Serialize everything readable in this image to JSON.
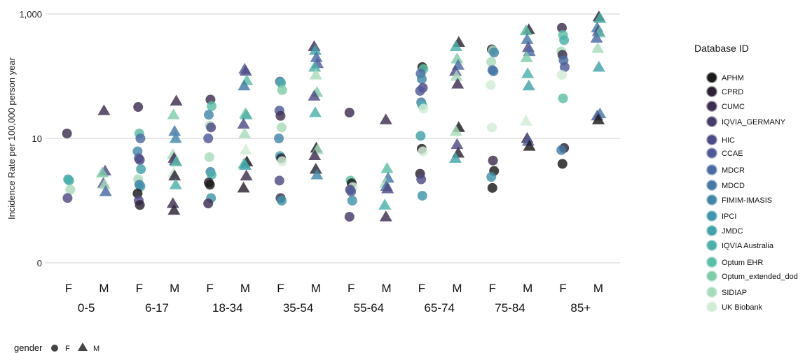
{
  "chart_data": {
    "type": "scatter",
    "xlabel": "",
    "ylabel": "Incidence Rate per 100,000 person year",
    "ylim": [
      0,
      1000
    ],
    "yscale": "log (0 shown at bottom)",
    "yticks": [
      {
        "value": 1000,
        "label": "1,000"
      },
      {
        "value": 10,
        "label": "10"
      },
      {
        "value": 0,
        "label": "0"
      }
    ],
    "grid": "horizontal",
    "age_groups": [
      "0-5",
      "6-17",
      "18-34",
      "35-54",
      "55-64",
      "65-74",
      "75-84",
      "85+"
    ],
    "genders": [
      "F",
      "M"
    ],
    "legend_title": "Database ID",
    "legend_position": "right",
    "databases": [
      {
        "name": "APHM",
        "color": "#1a1a1a"
      },
      {
        "name": "CPRD",
        "color": "#2b2232"
      },
      {
        "name": "CUMC",
        "color": "#3d2e4f"
      },
      {
        "name": "IQVIA_GERMANY",
        "color": "#473b6a"
      },
      {
        "name": "HIC",
        "color": "#4e4a84"
      },
      {
        "name": "CCAE",
        "color": "#4f5a97"
      },
      {
        "name": "MDCR",
        "color": "#4a6aa2"
      },
      {
        "name": "MDCD",
        "color": "#4679a6"
      },
      {
        "name": "FIMIM-IMASIS",
        "color": "#4387a8"
      },
      {
        "name": "IPCI",
        "color": "#4194aa"
      },
      {
        "name": "JMDC",
        "color": "#43a2aa"
      },
      {
        "name": "IQVIA Australia",
        "color": "#4cb0a8"
      },
      {
        "name": "Optum EHR",
        "color": "#5dbea6"
      },
      {
        "name": "Optum_extended_dod",
        "color": "#80ccaa"
      },
      {
        "name": "SIDIAP",
        "color": "#a8dbbb"
      },
      {
        "name": "UK Biobank",
        "color": "#d2ecd7"
      }
    ],
    "gender_legend": {
      "title": "gender",
      "items": [
        {
          "label": "F",
          "shape": "circle"
        },
        {
          "label": "M",
          "shape": "triangle"
        }
      ]
    },
    "points": [
      {
        "x": "0-5",
        "g": "F",
        "y": 12,
        "db": "CUMC"
      },
      {
        "x": "0-5",
        "g": "F",
        "y": 2.2,
        "db": "JMDC"
      },
      {
        "x": "0-5",
        "g": "F",
        "y": 2.1,
        "db": "IQVIA Australia"
      },
      {
        "x": "0-5",
        "g": "F",
        "y": 1.5,
        "db": "SIDIAP"
      },
      {
        "x": "0-5",
        "g": "F",
        "y": 1.1,
        "db": "HIC"
      },
      {
        "x": "0-5",
        "g": "M",
        "y": 28,
        "db": "CUMC"
      },
      {
        "x": "0-5",
        "g": "M",
        "y": 3.0,
        "db": "HIC"
      },
      {
        "x": "0-5",
        "g": "M",
        "y": 2.8,
        "db": "Optum_extended_dod"
      },
      {
        "x": "0-5",
        "g": "M",
        "y": 1.9,
        "db": "CCAE"
      },
      {
        "x": "0-5",
        "g": "M",
        "y": 1.8,
        "db": "SIDIAP"
      },
      {
        "x": "0-5",
        "g": "M",
        "y": 1.4,
        "db": "MDCR"
      },
      {
        "x": "6-17",
        "g": "F",
        "y": 32,
        "db": "CUMC"
      },
      {
        "x": "6-17",
        "g": "F",
        "y": 12,
        "db": "Optum EHR"
      },
      {
        "x": "6-17",
        "g": "F",
        "y": 10,
        "db": "MDCR"
      },
      {
        "x": "6-17",
        "g": "F",
        "y": 6.2,
        "db": "FIMIM-IMASIS"
      },
      {
        "x": "6-17",
        "g": "F",
        "y": 4.8,
        "db": "CCAE"
      },
      {
        "x": "6-17",
        "g": "F",
        "y": 4.5,
        "db": "HIC"
      },
      {
        "x": "6-17",
        "g": "F",
        "y": 3.2,
        "db": "JMDC"
      },
      {
        "x": "6-17",
        "g": "F",
        "y": 2.2,
        "db": "SIDIAP"
      },
      {
        "x": "6-17",
        "g": "F",
        "y": 1.8,
        "db": "MDCD"
      },
      {
        "x": "6-17",
        "g": "F",
        "y": 1.7,
        "db": "IPCI"
      },
      {
        "x": "6-17",
        "g": "F",
        "y": 1.3,
        "db": "APHM"
      },
      {
        "x": "6-17",
        "g": "F",
        "y": 1.0,
        "db": "HIC"
      },
      {
        "x": "6-17",
        "g": "F",
        "y": 0.85,
        "db": "CPRD"
      },
      {
        "x": "6-17",
        "g": "M",
        "y": 40,
        "db": "CUMC"
      },
      {
        "x": "6-17",
        "g": "M",
        "y": 24,
        "db": "Optum_extended_dod"
      },
      {
        "x": "6-17",
        "g": "M",
        "y": 13,
        "db": "MDCD"
      },
      {
        "x": "6-17",
        "g": "M",
        "y": 10,
        "db": "FIMIM-IMASIS"
      },
      {
        "x": "6-17",
        "g": "M",
        "y": 5.5,
        "db": "SIDIAP"
      },
      {
        "x": "6-17",
        "g": "M",
        "y": 4.8,
        "db": "CUMC"
      },
      {
        "x": "6-17",
        "g": "M",
        "y": 4.4,
        "db": "HIC"
      },
      {
        "x": "6-17",
        "g": "M",
        "y": 4.2,
        "db": "Optum EHR"
      },
      {
        "x": "6-17",
        "g": "M",
        "y": 2.8,
        "db": "UK Biobank"
      },
      {
        "x": "6-17",
        "g": "M",
        "y": 2.5,
        "db": "CPRD"
      },
      {
        "x": "6-17",
        "g": "M",
        "y": 1.8,
        "db": "IQVIA Australia"
      },
      {
        "x": "6-17",
        "g": "M",
        "y": 0.9,
        "db": "CUMC"
      },
      {
        "x": "6-17",
        "g": "M",
        "y": 0.7,
        "db": "CPRD"
      },
      {
        "x": "18-34",
        "g": "F",
        "y": 42,
        "db": "CUMC"
      },
      {
        "x": "18-34",
        "g": "F",
        "y": 33,
        "db": "Optum EHR"
      },
      {
        "x": "18-34",
        "g": "F",
        "y": 24,
        "db": "FIMIM-IMASIS"
      },
      {
        "x": "18-34",
        "g": "F",
        "y": 16,
        "db": "SIDIAP"
      },
      {
        "x": "18-34",
        "g": "F",
        "y": 15,
        "db": "HIC"
      },
      {
        "x": "18-34",
        "g": "F",
        "y": 10,
        "db": "CCAE"
      },
      {
        "x": "18-34",
        "g": "F",
        "y": 5.0,
        "db": "SIDIAP"
      },
      {
        "x": "18-34",
        "g": "F",
        "y": 2.9,
        "db": "FIMIM-IMASIS"
      },
      {
        "x": "18-34",
        "g": "F",
        "y": 2.6,
        "db": "IQVIA Australia"
      },
      {
        "x": "18-34",
        "g": "F",
        "y": 1.95,
        "db": "CPRD"
      },
      {
        "x": "18-34",
        "g": "F",
        "y": 1.8,
        "db": "APHM"
      },
      {
        "x": "18-34",
        "g": "F",
        "y": 1.1,
        "db": "IPCI"
      },
      {
        "x": "18-34",
        "g": "F",
        "y": 0.9,
        "db": "CUMC"
      },
      {
        "x": "18-34",
        "g": "M",
        "y": 130,
        "db": "CCAE"
      },
      {
        "x": "18-34",
        "g": "M",
        "y": 120,
        "db": "HIC"
      },
      {
        "x": "18-34",
        "g": "M",
        "y": 85,
        "db": "Optum EHR"
      },
      {
        "x": "18-34",
        "g": "M",
        "y": 70,
        "db": "MDCD"
      },
      {
        "x": "18-34",
        "g": "M",
        "y": 25,
        "db": "Optum_extended_dod"
      },
      {
        "x": "18-34",
        "g": "M",
        "y": 24,
        "db": "IQVIA Australia"
      },
      {
        "x": "18-34",
        "g": "M",
        "y": 17,
        "db": "HIC"
      },
      {
        "x": "18-34",
        "g": "M",
        "y": 12,
        "db": "SIDIAP"
      },
      {
        "x": "18-34",
        "g": "M",
        "y": 6.5,
        "db": "UK Biobank"
      },
      {
        "x": "18-34",
        "g": "M",
        "y": 4.2,
        "db": "APHM"
      },
      {
        "x": "18-34",
        "g": "M",
        "y": 3.9,
        "db": "IQVIA Australia"
      },
      {
        "x": "18-34",
        "g": "M",
        "y": 3.7,
        "db": "JMDC"
      },
      {
        "x": "18-34",
        "g": "M",
        "y": 2.5,
        "db": "CUMC"
      },
      {
        "x": "18-34",
        "g": "M",
        "y": 1.6,
        "db": "CPRD"
      },
      {
        "x": "35-54",
        "g": "F",
        "y": 82,
        "db": "MDCR"
      },
      {
        "x": "35-54",
        "g": "F",
        "y": 78,
        "db": "IQVIA Australia"
      },
      {
        "x": "35-54",
        "g": "F",
        "y": 60,
        "db": "Optum_extended_dod"
      },
      {
        "x": "35-54",
        "g": "F",
        "y": 28,
        "db": "CCAE"
      },
      {
        "x": "35-54",
        "g": "F",
        "y": 23,
        "db": "CUMC"
      },
      {
        "x": "35-54",
        "g": "F",
        "y": 15,
        "db": "SIDIAP"
      },
      {
        "x": "35-54",
        "g": "F",
        "y": 10,
        "db": "FIMIM-IMASIS"
      },
      {
        "x": "35-54",
        "g": "F",
        "y": 5.2,
        "db": "JMDC"
      },
      {
        "x": "35-54",
        "g": "F",
        "y": 4.8,
        "db": "CPRD"
      },
      {
        "x": "35-54",
        "g": "F",
        "y": 4.3,
        "db": "UK Biobank"
      },
      {
        "x": "35-54",
        "g": "F",
        "y": 2.1,
        "db": "HIC"
      },
      {
        "x": "35-54",
        "g": "F",
        "y": 1.1,
        "db": "CUMC"
      },
      {
        "x": "35-54",
        "g": "F",
        "y": 1.0,
        "db": "IPCI"
      },
      {
        "x": "35-54",
        "g": "M",
        "y": 300,
        "db": "CUMC"
      },
      {
        "x": "35-54",
        "g": "M",
        "y": 260,
        "db": "JMDC"
      },
      {
        "x": "35-54",
        "g": "M",
        "y": 200,
        "db": "MDCR"
      },
      {
        "x": "35-54",
        "g": "M",
        "y": 160,
        "db": "CCAE"
      },
      {
        "x": "35-54",
        "g": "M",
        "y": 140,
        "db": "IQVIA Australia"
      },
      {
        "x": "35-54",
        "g": "M",
        "y": 105,
        "db": "SIDIAP"
      },
      {
        "x": "35-54",
        "g": "M",
        "y": 55,
        "db": "Optum_extended_dod"
      },
      {
        "x": "35-54",
        "g": "M",
        "y": 48,
        "db": "HIC"
      },
      {
        "x": "35-54",
        "g": "M",
        "y": 26,
        "db": "IQVIA Australia"
      },
      {
        "x": "35-54",
        "g": "M",
        "y": 7.0,
        "db": "APHM"
      },
      {
        "x": "35-54",
        "g": "M",
        "y": 6.6,
        "db": "SIDIAP"
      },
      {
        "x": "35-54",
        "g": "M",
        "y": 5.3,
        "db": "CUMC"
      },
      {
        "x": "35-54",
        "g": "M",
        "y": 3.2,
        "db": "CPRD"
      },
      {
        "x": "35-54",
        "g": "M",
        "y": 2.6,
        "db": "FIMIM-IMASIS"
      },
      {
        "x": "55-64",
        "g": "F",
        "y": 26,
        "db": "CUMC"
      },
      {
        "x": "55-64",
        "g": "F",
        "y": 2.1,
        "db": "Optum EHR"
      },
      {
        "x": "55-64",
        "g": "F",
        "y": 1.9,
        "db": "APHM"
      },
      {
        "x": "55-64",
        "g": "F",
        "y": 1.65,
        "db": "UK Biobank"
      },
      {
        "x": "55-64",
        "g": "F",
        "y": 1.5,
        "db": "HIC"
      },
      {
        "x": "55-64",
        "g": "F",
        "y": 1.4,
        "db": "CCAE"
      },
      {
        "x": "55-64",
        "g": "F",
        "y": 1.0,
        "db": "IPCI"
      },
      {
        "x": "55-64",
        "g": "F",
        "y": 0.55,
        "db": "IQVIA_GERMANY"
      },
      {
        "x": "55-64",
        "g": "M",
        "y": 20,
        "db": "CUMC"
      },
      {
        "x": "55-64",
        "g": "M",
        "y": 3.3,
        "db": "Optum EHR"
      },
      {
        "x": "55-64",
        "g": "M",
        "y": 2.3,
        "db": "MDCD"
      },
      {
        "x": "55-64",
        "g": "M",
        "y": 1.9,
        "db": "SIDIAP"
      },
      {
        "x": "55-64",
        "g": "M",
        "y": 1.7,
        "db": "MDCR"
      },
      {
        "x": "55-64",
        "g": "M",
        "y": 1.55,
        "db": "HIC"
      },
      {
        "x": "55-64",
        "g": "M",
        "y": 0.85,
        "db": "IQVIA Australia"
      },
      {
        "x": "55-64",
        "g": "M",
        "y": 0.55,
        "db": "CUMC"
      },
      {
        "x": "65-74",
        "g": "F",
        "y": 140,
        "db": "APHM"
      },
      {
        "x": "65-74",
        "g": "F",
        "y": 130,
        "db": "Optum EHR"
      },
      {
        "x": "65-74",
        "g": "F",
        "y": 110,
        "db": "MDCR"
      },
      {
        "x": "65-74",
        "g": "F",
        "y": 90,
        "db": "FIMIM-IMASIS"
      },
      {
        "x": "65-74",
        "g": "F",
        "y": 65,
        "db": "HIC"
      },
      {
        "x": "65-74",
        "g": "F",
        "y": 58,
        "db": "CCAE"
      },
      {
        "x": "65-74",
        "g": "F",
        "y": 38,
        "db": "MDCD"
      },
      {
        "x": "65-74",
        "g": "F",
        "y": 34,
        "db": "IQVIA Australia"
      },
      {
        "x": "65-74",
        "g": "F",
        "y": 30,
        "db": "UK Biobank"
      },
      {
        "x": "65-74",
        "g": "F",
        "y": 11,
        "db": "JMDC"
      },
      {
        "x": "65-74",
        "g": "F",
        "y": 6.8,
        "db": "APHM"
      },
      {
        "x": "65-74",
        "g": "F",
        "y": 6.2,
        "db": "UK Biobank"
      },
      {
        "x": "65-74",
        "g": "F",
        "y": 2.7,
        "db": "CPRD"
      },
      {
        "x": "65-74",
        "g": "F",
        "y": 2.2,
        "db": "HIC"
      },
      {
        "x": "65-74",
        "g": "F",
        "y": 1.2,
        "db": "IPCI"
      },
      {
        "x": "65-74",
        "g": "M",
        "y": 350,
        "db": "CPRD"
      },
      {
        "x": "65-74",
        "g": "M",
        "y": 300,
        "db": "IQVIA Australia"
      },
      {
        "x": "65-74",
        "g": "M",
        "y": 190,
        "db": "Optum_extended_dod"
      },
      {
        "x": "65-74",
        "g": "M",
        "y": 150,
        "db": "MDCR"
      },
      {
        "x": "65-74",
        "g": "M",
        "y": 120,
        "db": "HIC"
      },
      {
        "x": "65-74",
        "g": "M",
        "y": 100,
        "db": "SIDIAP"
      },
      {
        "x": "65-74",
        "g": "M",
        "y": 75,
        "db": "CUMC"
      },
      {
        "x": "65-74",
        "g": "M",
        "y": 15,
        "db": "APHM"
      },
      {
        "x": "65-74",
        "g": "M",
        "y": 13,
        "db": "SIDIAP"
      },
      {
        "x": "65-74",
        "g": "M",
        "y": 8,
        "db": "HIC"
      },
      {
        "x": "65-74",
        "g": "M",
        "y": 5.8,
        "db": "CPRD"
      },
      {
        "x": "65-74",
        "g": "M",
        "y": 4.8,
        "db": "JMDC"
      },
      {
        "x": "75-84",
        "g": "F",
        "y": 270,
        "db": "CPRD"
      },
      {
        "x": "75-84",
        "g": "F",
        "y": 260,
        "db": "SIDIAP"
      },
      {
        "x": "75-84",
        "g": "F",
        "y": 240,
        "db": "FIMIM-IMASIS"
      },
      {
        "x": "75-84",
        "g": "F",
        "y": 170,
        "db": "SIDIAP"
      },
      {
        "x": "75-84",
        "g": "F",
        "y": 125,
        "db": "MDCR"
      },
      {
        "x": "75-84",
        "g": "F",
        "y": 120,
        "db": "MDCD"
      },
      {
        "x": "75-84",
        "g": "F",
        "y": 72,
        "db": "UK Biobank"
      },
      {
        "x": "75-84",
        "g": "F",
        "y": 15,
        "db": "UK Biobank"
      },
      {
        "x": "75-84",
        "g": "F",
        "y": 4.4,
        "db": "CUMC"
      },
      {
        "x": "75-84",
        "g": "F",
        "y": 3.0,
        "db": "APHM"
      },
      {
        "x": "75-84",
        "g": "F",
        "y": 2.4,
        "db": "IPCI"
      },
      {
        "x": "75-84",
        "g": "F",
        "y": 1.6,
        "db": "APHM"
      },
      {
        "x": "75-84",
        "g": "M",
        "y": 560,
        "db": "CPRD"
      },
      {
        "x": "75-84",
        "g": "M",
        "y": 540,
        "db": "Optum EHR"
      },
      {
        "x": "75-84",
        "g": "M",
        "y": 390,
        "db": "MDCD"
      },
      {
        "x": "75-84",
        "g": "M",
        "y": 290,
        "db": "HIC"
      },
      {
        "x": "75-84",
        "g": "M",
        "y": 250,
        "db": "MDCR"
      },
      {
        "x": "75-84",
        "g": "M",
        "y": 200,
        "db": "Optum_extended_dod"
      },
      {
        "x": "75-84",
        "g": "M",
        "y": 110,
        "db": "IQVIA Australia"
      },
      {
        "x": "75-84",
        "g": "M",
        "y": 70,
        "db": "JMDC"
      },
      {
        "x": "75-84",
        "g": "M",
        "y": 19,
        "db": "UK Biobank"
      },
      {
        "x": "75-84",
        "g": "M",
        "y": 10,
        "db": "CUMC"
      },
      {
        "x": "75-84",
        "g": "M",
        "y": 9,
        "db": "CCAE"
      },
      {
        "x": "75-84",
        "g": "M",
        "y": 7.5,
        "db": "APHM"
      },
      {
        "x": "85+",
        "g": "F",
        "y": 600,
        "db": "CUMC"
      },
      {
        "x": "85+",
        "g": "F",
        "y": 460,
        "db": "Optum EHR"
      },
      {
        "x": "85+",
        "g": "F",
        "y": 380,
        "db": "IQVIA Australia"
      },
      {
        "x": "85+",
        "g": "F",
        "y": 250,
        "db": "SIDIAP"
      },
      {
        "x": "85+",
        "g": "F",
        "y": 220,
        "db": "CUMC"
      },
      {
        "x": "85+",
        "g": "F",
        "y": 180,
        "db": "MDCR"
      },
      {
        "x": "85+",
        "g": "F",
        "y": 140,
        "db": "CCAE"
      },
      {
        "x": "85+",
        "g": "F",
        "y": 105,
        "db": "UK Biobank"
      },
      {
        "x": "85+",
        "g": "F",
        "y": 44,
        "db": "Optum EHR"
      },
      {
        "x": "85+",
        "g": "F",
        "y": 7.0,
        "db": "CPRD"
      },
      {
        "x": "85+",
        "g": "F",
        "y": 6.5,
        "db": "MDCD"
      },
      {
        "x": "85+",
        "g": "F",
        "y": 3.9,
        "db": "APHM"
      },
      {
        "x": "85+",
        "g": "M",
        "y": 900,
        "db": "CPRD"
      },
      {
        "x": "85+",
        "g": "M",
        "y": 850,
        "db": "IQVIA Australia"
      },
      {
        "x": "85+",
        "g": "M",
        "y": 600,
        "db": "MDCD"
      },
      {
        "x": "85+",
        "g": "M",
        "y": 530,
        "db": "HIC"
      },
      {
        "x": "85+",
        "g": "M",
        "y": 500,
        "db": "Optum EHR"
      },
      {
        "x": "85+",
        "g": "M",
        "y": 410,
        "db": "MDCR"
      },
      {
        "x": "85+",
        "g": "M",
        "y": 280,
        "db": "SIDIAP"
      },
      {
        "x": "85+",
        "g": "M",
        "y": 140,
        "db": "JMDC"
      },
      {
        "x": "85+",
        "g": "M",
        "y": 25,
        "db": "MDCD"
      },
      {
        "x": "85+",
        "g": "M",
        "y": 23,
        "db": "CCAE"
      },
      {
        "x": "85+",
        "g": "M",
        "y": 20,
        "db": "APHM"
      }
    ]
  }
}
